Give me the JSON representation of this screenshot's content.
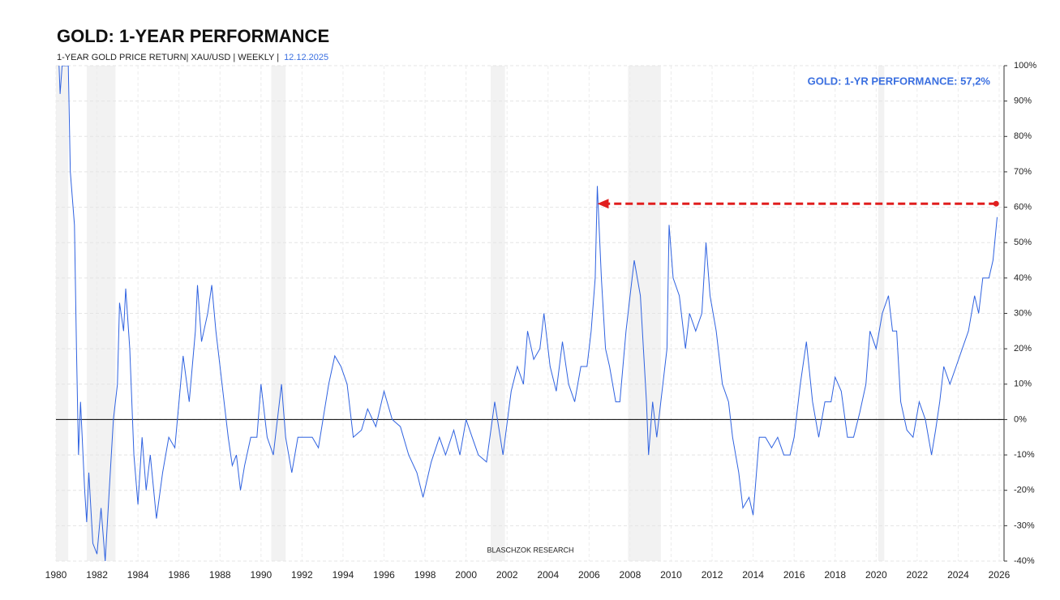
{
  "chart_data": {
    "type": "line",
    "title": "GOLD: 1-YEAR PERFORMANCE",
    "subtitle": "1-YEAR GOLD PRICE RETURN| XAU/USD | WEEKLY |",
    "date": "12.12.2025",
    "annotation": "GOLD: 1-YR PERFORMANCE: 57,2%",
    "watermark": "BLASCHZOK  RESEARCH",
    "color": "#2f62e0",
    "x": [
      1980.15,
      1980.2,
      1980.3,
      1980.6,
      1980.7,
      1980.9,
      1981.0,
      1981.1,
      1981.2,
      1981.4,
      1981.5,
      1981.6,
      1981.8,
      1982.0,
      1982.2,
      1982.4,
      1982.6,
      1982.8,
      1983.0,
      1983.1,
      1983.3,
      1983.4,
      1983.6,
      1983.8,
      1984.0,
      1984.2,
      1984.4,
      1984.6,
      1984.9,
      1985.2,
      1985.5,
      1985.8,
      1986.0,
      1986.2,
      1986.5,
      1986.8,
      1986.9,
      1987.1,
      1987.4,
      1987.6,
      1987.8,
      1988.0,
      1988.2,
      1988.4,
      1988.6,
      1988.8,
      1989.0,
      1989.2,
      1989.5,
      1989.8,
      1990.0,
      1990.3,
      1990.6,
      1991.0,
      1991.2,
      1991.5,
      1991.8,
      1992.0,
      1992.5,
      1992.8,
      1993.3,
      1993.6,
      1993.9,
      1994.2,
      1994.5,
      1994.9,
      1995.2,
      1995.6,
      1996.0,
      1996.4,
      1996.8,
      1997.2,
      1997.6,
      1997.9,
      1998.3,
      1998.7,
      1999.0,
      1999.4,
      1999.7,
      2000.0,
      2000.3,
      2000.6,
      2001.0,
      2001.4,
      2001.8,
      2002.2,
      2002.5,
      2002.8,
      2003.0,
      2003.3,
      2003.6,
      2003.8,
      2004.1,
      2004.4,
      2004.7,
      2005.0,
      2005.3,
      2005.6,
      2005.9,
      2006.1,
      2006.3,
      2006.4,
      2006.6,
      2006.8,
      2007.0,
      2007.3,
      2007.5,
      2007.8,
      2008.0,
      2008.2,
      2008.5,
      2008.8,
      2008.9,
      2009.1,
      2009.3,
      2009.5,
      2009.8,
      2009.9,
      2010.1,
      2010.4,
      2010.7,
      2010.9,
      2011.2,
      2011.5,
      2011.7,
      2011.9,
      2012.2,
      2012.5,
      2012.8,
      2013.0,
      2013.3,
      2013.5,
      2013.8,
      2014.0,
      2014.3,
      2014.6,
      2014.9,
      2015.2,
      2015.5,
      2015.8,
      2016.0,
      2016.3,
      2016.6,
      2016.9,
      2017.2,
      2017.5,
      2017.8,
      2018.0,
      2018.3,
      2018.6,
      2018.9,
      2019.2,
      2019.5,
      2019.7,
      2020.0,
      2020.3,
      2020.6,
      2020.8,
      2021.0,
      2021.2,
      2021.5,
      2021.8,
      2022.1,
      2022.4,
      2022.7,
      2022.9,
      2023.1,
      2023.3,
      2023.6,
      2023.9,
      2024.2,
      2024.5,
      2024.8,
      2025.0,
      2025.2,
      2025.5,
      2025.7,
      2025.9
    ],
    "values": [
      100,
      92,
      100,
      100,
      70,
      55,
      20,
      -10,
      5,
      -20,
      -29,
      -15,
      -35,
      -38,
      -25,
      -40,
      -20,
      0,
      10,
      33,
      25,
      37,
      20,
      -10,
      -24,
      -5,
      -20,
      -10,
      -28,
      -15,
      -5,
      -8,
      5,
      18,
      5,
      25,
      38,
      22,
      30,
      38,
      25,
      15,
      5,
      -5,
      -13,
      -10,
      -20,
      -13,
      -5,
      -5,
      10,
      -5,
      -10,
      10,
      -5,
      -15,
      -5,
      -5,
      -5,
      -8,
      10,
      18,
      15,
      10,
      -5,
      -3,
      3,
      -2,
      8,
      0,
      -2,
      -10,
      -15,
      -22,
      -12,
      -5,
      -10,
      -3,
      -10,
      0,
      -5,
      -10,
      -12,
      5,
      -10,
      8,
      15,
      10,
      25,
      17,
      20,
      30,
      15,
      8,
      22,
      10,
      5,
      15,
      15,
      25,
      40,
      66,
      40,
      20,
      15,
      5,
      5,
      25,
      35,
      45,
      35,
      5,
      -10,
      5,
      -5,
      5,
      20,
      55,
      40,
      35,
      20,
      30,
      25,
      30,
      50,
      35,
      25,
      10,
      5,
      -5,
      -15,
      -25,
      -22,
      -27,
      -5,
      -5,
      -8,
      -5,
      -10,
      -10,
      -5,
      10,
      22,
      5,
      -5,
      5,
      5,
      12,
      8,
      -5,
      -5,
      2,
      10,
      25,
      20,
      30,
      35,
      25,
      25,
      5,
      -3,
      -5,
      5,
      0,
      -10,
      -3,
      5,
      15,
      10,
      15,
      20,
      25,
      35,
      30,
      40,
      40,
      45,
      57.2
    ],
    "xlim": [
      1980,
      2026
    ],
    "xticks": [
      1980,
      1982,
      1984,
      1986,
      1988,
      1990,
      1992,
      1994,
      1996,
      1998,
      2000,
      2002,
      2004,
      2006,
      2008,
      2010,
      2012,
      2014,
      2016,
      2018,
      2020,
      2022,
      2024,
      2026
    ],
    "ylim": [
      -40,
      100
    ],
    "yticks": [
      {
        "value": -40,
        "label": "-40%"
      },
      {
        "value": -30,
        "label": "-30%"
      },
      {
        "value": -20,
        "label": "-20%"
      },
      {
        "value": -10,
        "label": "-10%"
      },
      {
        "value": 0,
        "label": "0%"
      },
      {
        "value": 10,
        "label": "10%"
      },
      {
        "value": 20,
        "label": "20%"
      },
      {
        "value": 30,
        "label": "30%"
      },
      {
        "value": 40,
        "label": "40%"
      },
      {
        "value": 50,
        "label": "50%"
      },
      {
        "value": 60,
        "label": "60%"
      },
      {
        "value": 70,
        "label": "70%"
      },
      {
        "value": 80,
        "label": "80%"
      },
      {
        "value": 90,
        "label": "90%"
      },
      {
        "value": 100,
        "label": "100%"
      }
    ],
    "grid": true,
    "shaded_periods": [
      [
        1980.0,
        1980.6
      ],
      [
        1981.5,
        1982.9
      ],
      [
        1990.5,
        1991.2
      ],
      [
        2001.2,
        2001.9
      ],
      [
        2007.9,
        2009.5
      ],
      [
        2020.1,
        2020.4
      ]
    ],
    "arrow": {
      "x": [
        2025.85,
        2006.4
      ],
      "y": 61,
      "color": "#e01e1e"
    }
  }
}
